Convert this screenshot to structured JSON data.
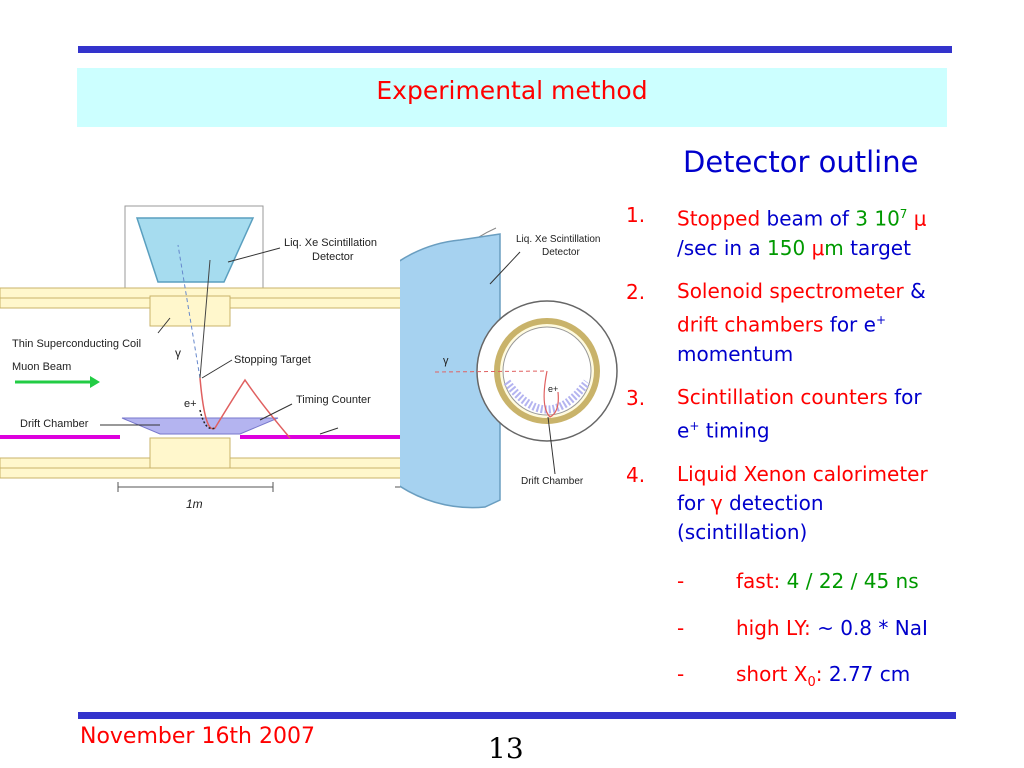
{
  "title": "Experimental method",
  "footer": {
    "date": "November 16th  2007",
    "page": "13"
  },
  "detector": {
    "heading": "Detector outline",
    "items": [
      {
        "num": "1.",
        "parts": [
          [
            "Stopped",
            "red"
          ],
          [
            " beam of ",
            "blue"
          ],
          [
            "3 10",
            "green"
          ]
        ],
        "sup": "7",
        "parts2": [
          [
            " μ",
            "red"
          ]
        ],
        "line2": [
          [
            "/sec",
            "blue"
          ],
          [
            " in a ",
            "blue"
          ],
          [
            "150 ",
            "green"
          ],
          [
            "μ",
            "red"
          ],
          [
            "m ",
            "green"
          ],
          [
            "target",
            "blue"
          ]
        ]
      },
      {
        "num": "2.",
        "line1": "Solenoid spectrometer",
        "amp": " &",
        "line2a": "drift chambers",
        "line2b": " for e",
        "line2sup": "+",
        "line3": "momentum"
      },
      {
        "num": "3.",
        "line1": "Scintillation counters",
        "line1b": " for",
        "line2": "e",
        "line2sup": "+",
        "line2b": " timing"
      },
      {
        "num": "4.",
        "line1": "Liquid Xenon calorimeter",
        "line2a": "for ",
        "line2g": "γ",
        "line2b": " detection",
        "line3": "(scintillation)"
      }
    ],
    "subs": [
      {
        "dash": "-",
        "label": "fast:",
        "value": "  4 / 22 / 45 ns"
      },
      {
        "dash": "-",
        "label": "high LY:",
        "value": " ~ 0.8 * NaI"
      },
      {
        "dash": "-",
        "label": "short X",
        "labelsub": "0",
        "colon": ":",
        "value": " 2.77 cm"
      }
    ]
  },
  "left_diagram": {
    "labels": {
      "lxe": "Liq. Xe Scintillation",
      "lxe2": "Detector",
      "coil": "Thin Superconducting Coil",
      "beam": "Muon Beam",
      "target": "Stopping Target",
      "timing": "Timing Counter",
      "drift": "Drift Chamber",
      "gamma": "γ",
      "eplus": "e+",
      "scale": "1m"
    }
  },
  "right_diagram": {
    "labels": {
      "lxe": "Liq. Xe Scintillation",
      "lxe2": "Detector",
      "gamma": "γ",
      "eplus": "e+",
      "drift": "Drift Chamber"
    }
  },
  "colors": {
    "bar": "#3333cc",
    "title_bg": "#ccffff",
    "title": "#ff0000",
    "calorimeter": "#a6d2f0",
    "drift_chamber": "#b4b4f0",
    "timing_counter": "#dd00dd"
  }
}
